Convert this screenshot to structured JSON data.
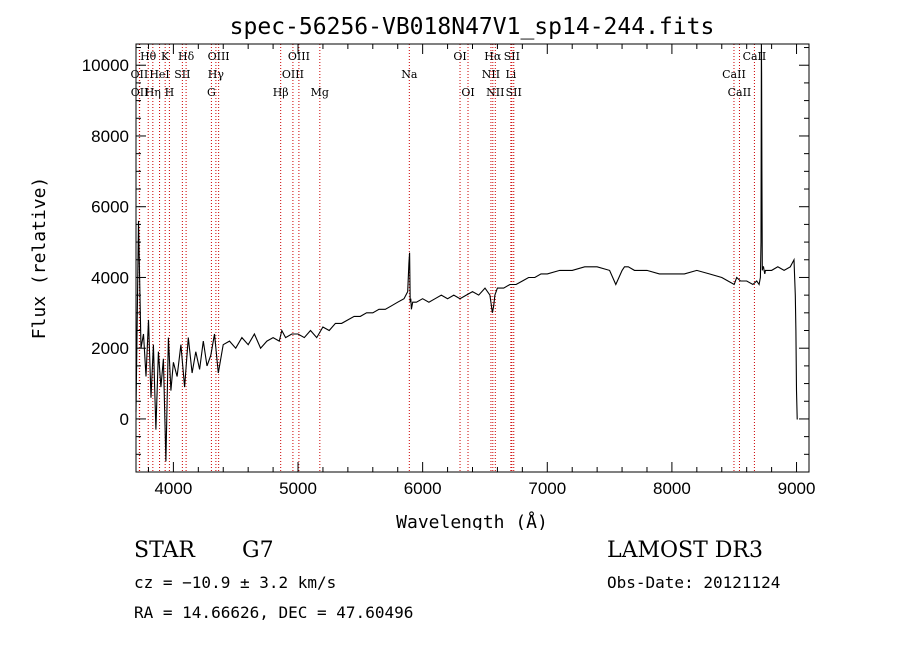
{
  "chart_data": {
    "type": "line",
    "title": "spec-56256-VB018N47V1_sp14-244.fits",
    "xlabel": "Wavelength (Å)",
    "ylabel": "Flux (relative)",
    "xlim": [
      3700,
      9100
    ],
    "ylim": [
      -1500,
      10600
    ],
    "xticks": [
      4000,
      5000,
      6000,
      7000,
      8000,
      9000
    ],
    "yticks": [
      0,
      2000,
      4000,
      6000,
      8000,
      10000
    ],
    "line_color": "#000000",
    "marker_color": "#cc0000",
    "series": [
      {
        "name": "flux",
        "x": [
          3700,
          3720,
          3740,
          3760,
          3780,
          3800,
          3820,
          3840,
          3860,
          3880,
          3900,
          3920,
          3940,
          3960,
          3980,
          4000,
          4030,
          4060,
          4090,
          4120,
          4150,
          4180,
          4210,
          4240,
          4270,
          4300,
          4330,
          4360,
          4400,
          4450,
          4500,
          4550,
          4600,
          4650,
          4700,
          4750,
          4800,
          4850,
          4870,
          4900,
          4950,
          5000,
          5050,
          5100,
          5150,
          5200,
          5250,
          5300,
          5350,
          5400,
          5450,
          5500,
          5550,
          5600,
          5650,
          5700,
          5750,
          5800,
          5850,
          5880,
          5890,
          5895,
          5900,
          5905,
          5910,
          5920,
          5950,
          6000,
          6050,
          6100,
          6150,
          6200,
          6250,
          6300,
          6350,
          6400,
          6450,
          6500,
          6540,
          6560,
          6570,
          6580,
          6600,
          6650,
          6700,
          6750,
          6800,
          6850,
          6900,
          6950,
          7000,
          7100,
          7200,
          7300,
          7400,
          7500,
          7550,
          7600,
          7620,
          7650,
          7700,
          7800,
          7900,
          8000,
          8100,
          8200,
          8300,
          8400,
          8450,
          8500,
          8520,
          8550,
          8600,
          8650,
          8680,
          8700,
          8710,
          8715,
          8718,
          8720,
          8722,
          8725,
          8730,
          8735,
          8740,
          8745,
          8750,
          8800,
          8850,
          8900,
          8950,
          8980,
          8990,
          8995,
          9000,
          9005,
          9010
        ],
        "values": [
          200,
          5600,
          2000,
          2400,
          1200,
          2800,
          600,
          2100,
          -300,
          1900,
          900,
          1700,
          -1200,
          2300,
          800,
          1600,
          1200,
          2100,
          900,
          2300,
          1300,
          1900,
          1400,
          2200,
          1500,
          1800,
          2400,
          1300,
          2100,
          2200,
          2000,
          2300,
          2100,
          2400,
          2000,
          2200,
          2300,
          2200,
          2500,
          2300,
          2400,
          2400,
          2300,
          2500,
          2300,
          2600,
          2500,
          2700,
          2700,
          2800,
          2900,
          2900,
          3000,
          3000,
          3100,
          3100,
          3200,
          3300,
          3400,
          3600,
          4400,
          4700,
          3300,
          3400,
          3100,
          3300,
          3300,
          3400,
          3300,
          3400,
          3500,
          3400,
          3500,
          3400,
          3500,
          3600,
          3500,
          3700,
          3500,
          3000,
          3200,
          3500,
          3700,
          3700,
          3800,
          3800,
          3900,
          4000,
          4000,
          4100,
          4100,
          4200,
          4200,
          4300,
          4300,
          4200,
          3800,
          4200,
          4300,
          4300,
          4200,
          4200,
          4100,
          4100,
          4100,
          4200,
          4100,
          4000,
          3900,
          3800,
          4000,
          3900,
          3900,
          3800,
          3900,
          3800,
          4000,
          5000,
          10600,
          9800,
          7000,
          4200,
          4300,
          4300,
          4200,
          4100,
          4200,
          4200,
          4300,
          4200,
          4300,
          4500,
          3500,
          2500,
          800,
          0,
          0
        ]
      }
    ],
    "lines": [
      {
        "label": "Hθ",
        "x": 3798,
        "row": 0
      },
      {
        "label": "OII",
        "x": 3727,
        "row": 1
      },
      {
        "label": "OII",
        "x": 3729,
        "row": 2
      },
      {
        "label": "K",
        "x": 3934,
        "row": 0
      },
      {
        "label": "HeI",
        "x": 3889,
        "row": 1
      },
      {
        "label": "Hη",
        "x": 3835,
        "row": 2
      },
      {
        "label": "SII",
        "x": 4072,
        "row": 1
      },
      {
        "label": "H",
        "x": 3968,
        "row": 2
      },
      {
        "label": "Hδ",
        "x": 4102,
        "row": 0
      },
      {
        "label": "OIII",
        "x": 4363,
        "row": 0
      },
      {
        "label": "Hγ",
        "x": 4341,
        "row": 1
      },
      {
        "label": "G",
        "x": 4305,
        "row": 2
      },
      {
        "label": "Hβ",
        "x": 4861,
        "row": 2
      },
      {
        "label": "OIII",
        "x": 5007,
        "row": 0
      },
      {
        "label": "OIII",
        "x": 4959,
        "row": 1
      },
      {
        "label": "Mg",
        "x": 5175,
        "row": 2
      },
      {
        "label": "Na",
        "x": 5893,
        "row": 1
      },
      {
        "label": "OI",
        "x": 6300,
        "row": 0
      },
      {
        "label": "OI",
        "x": 6364,
        "row": 2
      },
      {
        "label": "Hα",
        "x": 6563,
        "row": 0
      },
      {
        "label": "NII",
        "x": 6548,
        "row": 1
      },
      {
        "label": "NII",
        "x": 6583,
        "row": 2
      },
      {
        "label": "SII",
        "x": 6716,
        "row": 0
      },
      {
        "label": "Li",
        "x": 6708,
        "row": 1
      },
      {
        "label": "SII",
        "x": 6731,
        "row": 2
      },
      {
        "label": "CaII",
        "x": 8662,
        "row": 0
      },
      {
        "label": "CaII",
        "x": 8498,
        "row": 1
      },
      {
        "label": "CaII",
        "x": 8542,
        "row": 2
      }
    ]
  },
  "info": {
    "object_class": "STAR",
    "subclass": "G7",
    "survey": "LAMOST DR3",
    "redshift": "cz = −10.9 ± 3.2 km/s",
    "obs_date": "Obs-Date: 20121124",
    "coords": "RA =  14.66626, DEC =  47.60496"
  }
}
